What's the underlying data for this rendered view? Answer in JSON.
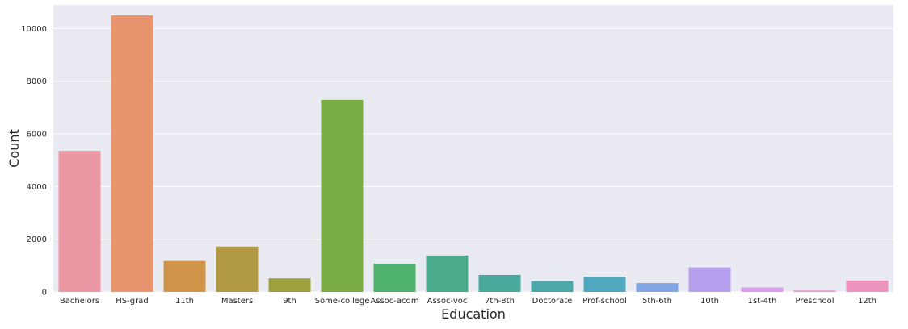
{
  "chart_data": {
    "type": "bar",
    "title": "",
    "xlabel": "Education",
    "ylabel": "Count",
    "ylim": [
      0,
      10900
    ],
    "yticks": [
      0,
      2000,
      4000,
      6000,
      8000,
      10000
    ],
    "grid": true,
    "categories": [
      "Bachelors",
      "HS-grad",
      "11th",
      "Masters",
      "9th",
      "Some-college",
      "Assoc-acdm",
      "Assoc-voc",
      "7th-8th",
      "Doctorate",
      "Prof-school",
      "5th-6th",
      "10th",
      "1st-4th",
      "Preschool",
      "12th"
    ],
    "values": [
      5355,
      10501,
      1175,
      1723,
      514,
      7291,
      1067,
      1382,
      646,
      413,
      576,
      333,
      933,
      168,
      51,
      433
    ],
    "colors": [
      "#ea96a3",
      "#e8946f",
      "#cf9447",
      "#b29a45",
      "#a0a13f",
      "#79ac45",
      "#4eb16c",
      "#4bac8d",
      "#49a99c",
      "#4ba7aa",
      "#4fa7c0",
      "#82a6e3",
      "#b6a0ed",
      "#d89ced",
      "#ec8fd7",
      "#ea93bd"
    ],
    "background": "#eaeaf2"
  }
}
